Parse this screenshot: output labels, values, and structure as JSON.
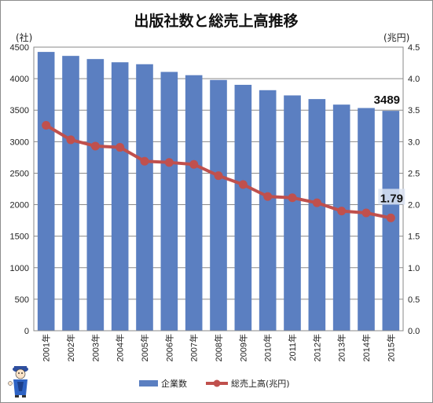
{
  "chart_data": {
    "type": "bar",
    "title": "出版社数と総売上高推移",
    "categories": [
      "2001年",
      "2002年",
      "2003年",
      "2004年",
      "2005年",
      "2006年",
      "2007年",
      "2008年",
      "2009年",
      "2010年",
      "2011年",
      "2012年",
      "2013年",
      "2014年",
      "2015年"
    ],
    "series": [
      {
        "name": "企業数",
        "type": "bar",
        "axis": "left",
        "color": "#5b7fc1",
        "values": [
          4424,
          4361,
          4311,
          4260,
          4229,
          4107,
          4055,
          3979,
          3902,
          3817,
          3734,
          3676,
          3588,
          3534,
          3489
        ]
      },
      {
        "name": "総売上高(兆円)",
        "type": "line",
        "axis": "right",
        "color": "#c0504d",
        "values": [
          3.26,
          3.03,
          2.93,
          2.91,
          2.69,
          2.67,
          2.64,
          2.46,
          2.32,
          2.13,
          2.11,
          2.03,
          1.9,
          1.87,
          1.79
        ]
      }
    ],
    "yaxis_left": {
      "unit": "(社)",
      "min": 0,
      "max": 4500,
      "step": 500,
      "ticks": [
        "0",
        "500",
        "1000",
        "1500",
        "2000",
        "2500",
        "3000",
        "3500",
        "4000",
        "4500"
      ]
    },
    "yaxis_right": {
      "unit": "(兆円)",
      "min": 0,
      "max": 4.5,
      "step": 0.5,
      "ticks": [
        "0.0",
        "0.5",
        "1.0",
        "1.5",
        "2.0",
        "2.5",
        "3.0",
        "3.5",
        "4.0",
        "4.5"
      ]
    },
    "data_labels": [
      {
        "series": "企業数",
        "index": 14,
        "text": "3489"
      },
      {
        "series": "総売上高(兆円)",
        "index": 14,
        "text": "1.79"
      }
    ],
    "grid": true,
    "legend_position": "bottom"
  }
}
